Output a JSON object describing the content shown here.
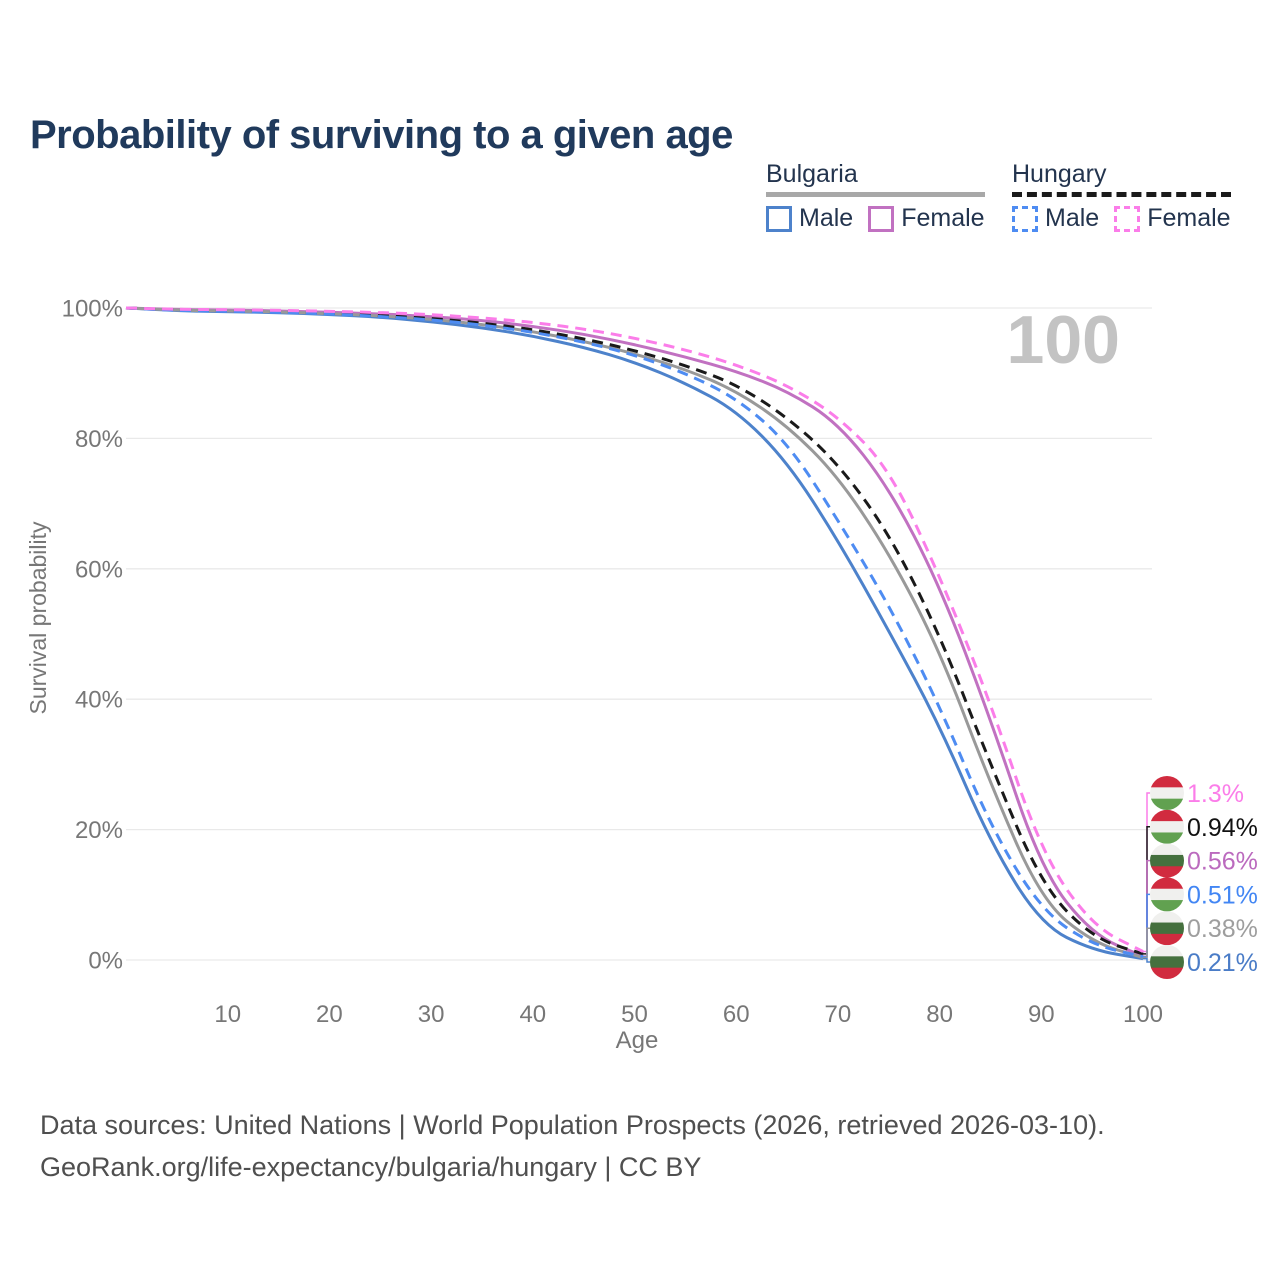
{
  "page_title": "Probability of surviving to a given age",
  "watermark_age": "100",
  "legend": {
    "groups": [
      {
        "country": "Bulgaria",
        "line_style": "solid",
        "line_color": "#a8a8a8",
        "items": [
          {
            "label": "Male",
            "color": "#4d82cb"
          },
          {
            "label": "Female",
            "color": "#c171c1"
          }
        ]
      },
      {
        "country": "Hungary",
        "line_style": "dashed",
        "line_color": "#1a1a1a",
        "items": [
          {
            "label": "Male",
            "color": "#4e8cf2"
          },
          {
            "label": "Female",
            "color": "#fb7de9"
          }
        ]
      }
    ]
  },
  "chart_data": {
    "type": "line",
    "title": "Probability of surviving to a given age",
    "xlabel": "Age",
    "ylabel": "Survival probability",
    "xlim": [
      0,
      100
    ],
    "ylim": [
      0,
      100
    ],
    "grid": "horizontal",
    "legend_position": "top-right",
    "xticks": [
      10,
      20,
      30,
      40,
      50,
      60,
      70,
      80,
      90,
      100
    ],
    "yticks": [
      {
        "value": 0,
        "label": "0%"
      },
      {
        "value": 20,
        "label": "20%"
      },
      {
        "value": 40,
        "label": "40%"
      },
      {
        "value": 60,
        "label": "60%"
      },
      {
        "value": 80,
        "label": "80%"
      },
      {
        "value": 100,
        "label": "100%"
      }
    ],
    "ages": [
      0,
      5,
      10,
      15,
      20,
      25,
      30,
      35,
      40,
      45,
      50,
      55,
      60,
      65,
      70,
      75,
      80,
      85,
      90,
      95,
      100
    ],
    "series": [
      {
        "name": "Bulgaria Female",
        "country": "Bulgaria",
        "sex": "Female",
        "style": "solid",
        "color": "#c171c1",
        "flag": "bulgaria",
        "end_label": "0.56%",
        "end_label_color": "#bb6abe",
        "values": [
          100,
          99.75,
          99.7,
          99.55,
          99.35,
          99.1,
          98.7,
          98.1,
          97.2,
          96.0,
          94.4,
          92.5,
          90.3,
          87.3,
          82.4,
          72.5,
          57.5,
          37.0,
          13.8,
          3.9,
          0.56
        ]
      },
      {
        "name": "Bulgaria Male",
        "country": "Bulgaria",
        "sex": "Male",
        "style": "solid",
        "color": "#4d82cb",
        "flag": "bulgaria",
        "end_label": "0.21%",
        "end_label_color": "#4a7cc7",
        "values": [
          100,
          99.55,
          99.45,
          99.3,
          99.0,
          98.6,
          97.9,
          97.0,
          95.7,
          94.0,
          91.7,
          88.5,
          84.3,
          76.5,
          64.4,
          50.5,
          36.0,
          18.0,
          5.4,
          1.5,
          0.21
        ]
      },
      {
        "name": "Bulgaria",
        "country": "Bulgaria",
        "sex": "Both",
        "style": "solid",
        "color": "#999999",
        "flag": "bulgaria",
        "end_label": "0.38%",
        "end_label_color": "#9e9e9e",
        "values": [
          100,
          99.65,
          99.55,
          99.4,
          99.15,
          98.8,
          98.3,
          97.5,
          96.4,
          94.9,
          93.0,
          90.6,
          87.3,
          82.0,
          74.2,
          62.5,
          47.5,
          27.0,
          9.2,
          2.7,
          0.38
        ]
      },
      {
        "name": "Hungary",
        "country": "Hungary",
        "sex": "Both",
        "style": "dashed",
        "color": "#1a1a1a",
        "flag": "hungary",
        "end_label": "0.94%",
        "end_label_color": "#111111",
        "values": [
          100,
          99.7,
          99.6,
          99.45,
          99.2,
          98.85,
          98.4,
          97.7,
          96.7,
          95.3,
          93.5,
          91.2,
          88.3,
          83.3,
          76.2,
          65.5,
          50.0,
          30.0,
          11.6,
          3.4,
          0.94
        ]
      },
      {
        "name": "Hungary Male",
        "country": "Hungary",
        "sex": "Male",
        "style": "dashed",
        "color": "#4e8cf2",
        "flag": "hungary",
        "end_label": "0.51%",
        "end_label_color": "#4286f4",
        "values": [
          100,
          99.6,
          99.5,
          99.35,
          99.1,
          98.7,
          98.2,
          97.4,
          96.3,
          94.8,
          92.8,
          90.0,
          86.2,
          79.5,
          67.5,
          54.5,
          39.0,
          20.5,
          7.6,
          2.3,
          0.51
        ]
      },
      {
        "name": "Hungary Female",
        "country": "Hungary",
        "sex": "Female",
        "style": "dashed",
        "color": "#fb7de9",
        "flag": "hungary",
        "end_label": "1.3%",
        "end_label_color": "#fb7de9",
        "values": [
          100,
          99.8,
          99.75,
          99.65,
          99.5,
          99.3,
          99.0,
          98.5,
          97.8,
          96.8,
          95.4,
          93.6,
          91.3,
          88.2,
          83.4,
          75.5,
          59.0,
          39.5,
          16.5,
          5.2,
          1.3
        ]
      }
    ],
    "flags": {
      "hungary": {
        "stripes": [
          "#d12b3f",
          "#f0f0ee",
          "#61a150"
        ]
      },
      "bulgaria": {
        "stripes": [
          "#f0f0ee",
          "#45703e",
          "#d12b3f"
        ]
      }
    }
  },
  "footer": {
    "line1": "Data sources: United Nations | World Population Prospects (2026, retrieved 2026-03-10).",
    "line2": "GeoRank.org/life-expectancy/bulgaria/hungary | CC BY"
  }
}
